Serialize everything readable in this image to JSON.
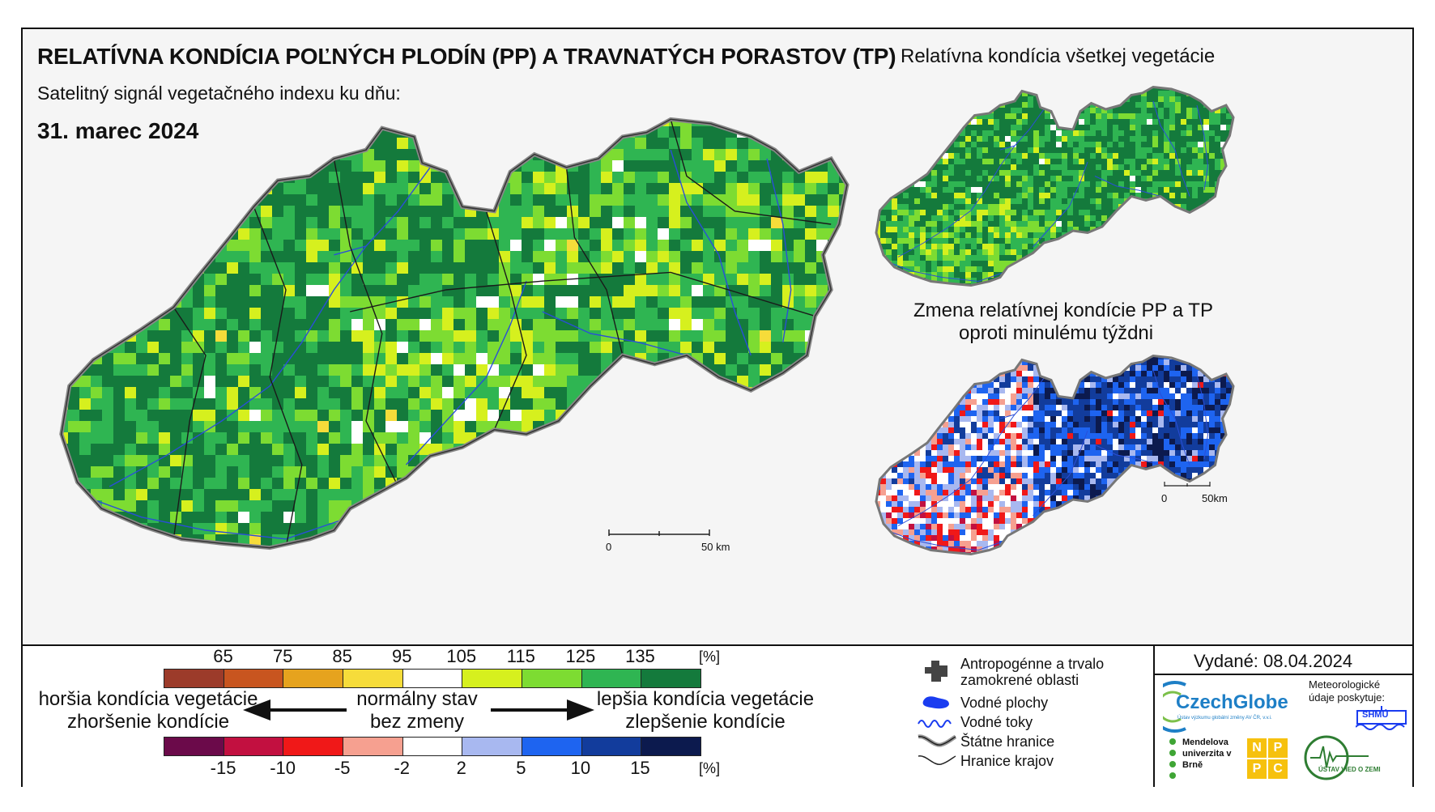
{
  "header": {
    "title": "RELATÍVNA KONDÍCIA POĽNÝCH PLODÍN (PP) A TRAVNATÝCH PORASTOV (TP)",
    "subtitle": "Satelitný signál vegetačného indexu ku dňu:",
    "date": "31. marec 2024"
  },
  "side_maps": {
    "vegetation_title": "Relatívna kondícia všetkej vegetácie",
    "change_title_line1": "Zmena relatívnej kondície PP a TP",
    "change_title_line2": "oproti minulému týždni"
  },
  "scalebars": {
    "main_zero": "0",
    "main_end": "50 km",
    "small_zero": "0",
    "small_end": "50km"
  },
  "legend": {
    "condition_ticks": [
      "65",
      "75",
      "85",
      "95",
      "105",
      "115",
      "125",
      "135",
      "[%]"
    ],
    "condition_colors": [
      "#9c3b2a",
      "#c8551f",
      "#e6a31e",
      "#f6dc3a",
      "#ffffff",
      "#d6f01e",
      "#7ddc32",
      "#2fb552",
      "#147a3c"
    ],
    "change_ticks": [
      "-15",
      "-10",
      "-5",
      "-2",
      "2",
      "5",
      "10",
      "15",
      "[%]"
    ],
    "change_colors": [
      "#6b0a4a",
      "#c21040",
      "#f01818",
      "#f6a090",
      "#ffffff",
      "#a8b8f0",
      "#1e64f0",
      "#123c9c",
      "#0c1a4e"
    ],
    "worse_line1": "horšia kondícia vegetácie",
    "worse_line2": "zhoršenie kondície",
    "normal_line1": "normálny stav",
    "normal_line2": "bez zmeny",
    "better_line1": "lepšia kondícia vegetácie",
    "better_line2": "zlepšenie kondície"
  },
  "map_key": {
    "urban": "Antropogénne a trvalo zamokrené oblasti",
    "water_areas": "Vodné plochy",
    "rivers": "Vodné toky",
    "state_border": "Štátne hranice",
    "region_border": "Hranice krajov"
  },
  "issued": "Vydané: 08.04.2024",
  "logos": {
    "czechglobe": "CzechGlobe",
    "czechglobe_sub": "Ústav výzkumu globální změny AV ČR, v.v.i.",
    "meteo_caption": "Meteorologické údaje poskytuje:",
    "shmu": "SHMÚ",
    "mendelu": "Mendelova univerzita v Brně",
    "nppc": [
      "N",
      "P",
      "P",
      "C"
    ],
    "uvz": "ÚSTAV VIED O ZEMI"
  },
  "icons": [
    "building-icon",
    "water-blob-icon",
    "river-line-icon",
    "border-line-icon",
    "region-line-icon",
    "arrow-left-icon",
    "arrow-right-icon"
  ]
}
